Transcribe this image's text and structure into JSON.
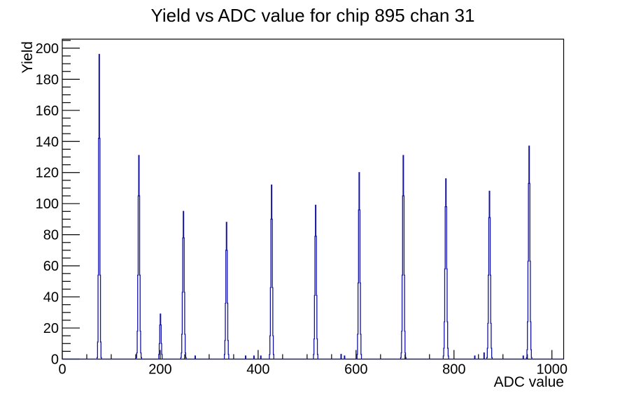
{
  "chart_data": {
    "type": "line",
    "subtype": "step-histogram",
    "title": "Yield vs ADC value for chip 895 chan 31",
    "xlabel": "ADC value",
    "ylabel": "Yield",
    "xlim": [
      0,
      1024
    ],
    "ylim": [
      0,
      205.8
    ],
    "n_bins": 1024,
    "x_major_ticks": [
      0,
      200,
      400,
      600,
      800,
      1000
    ],
    "x_minor_step": 50,
    "y_major_ticks": [
      0,
      20,
      40,
      60,
      80,
      100,
      120,
      140,
      160,
      180,
      200
    ],
    "y_minor_step": 5,
    "grid": false,
    "legend": "none",
    "line_color": "#1212a5",
    "frame_color": "#000000",
    "background_color": "#ffffff",
    "peaks": [
      {
        "adc": 75,
        "yield": 196,
        "sigma": 1.25
      },
      {
        "adc": 156,
        "yield": 131,
        "sigma": 1.5
      },
      {
        "adc": 200,
        "yield": 29,
        "sigma": 1.4
      },
      {
        "adc": 247,
        "yield": 95,
        "sigma": 1.6
      },
      {
        "adc": 335,
        "yield": 88,
        "sigma": 1.5
      },
      {
        "adc": 427,
        "yield": 112,
        "sigma": 1.5
      },
      {
        "adc": 517,
        "yield": 99,
        "sigma": 1.5
      },
      {
        "adc": 606,
        "yield": 120,
        "sigma": 1.5
      },
      {
        "adc": 696,
        "yield": 131,
        "sigma": 1.5
      },
      {
        "adc": 783,
        "yield": 116,
        "sigma": 1.7
      },
      {
        "adc": 872,
        "yield": 108,
        "sigma": 1.7
      },
      {
        "adc": 953,
        "yield": 137,
        "sigma": 1.6
      }
    ],
    "noise_bins": [
      {
        "adc": 271,
        "yield": 2
      },
      {
        "adc": 374,
        "yield": 2
      },
      {
        "adc": 391,
        "yield": 2
      },
      {
        "adc": 405,
        "yield": 2
      },
      {
        "adc": 569,
        "yield": 3
      },
      {
        "adc": 576,
        "yield": 2
      },
      {
        "adc": 842,
        "yield": 2
      },
      {
        "adc": 861,
        "yield": 4
      },
      {
        "adc": 941,
        "yield": 2
      }
    ]
  }
}
